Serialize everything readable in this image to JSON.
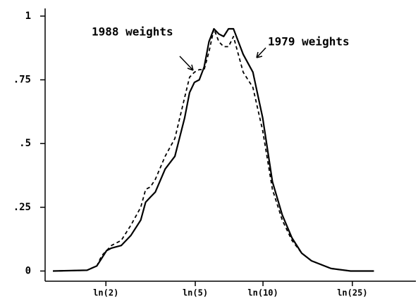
{
  "chart_data": {
    "type": "line",
    "x": [
      0.15,
      0.5,
      0.6,
      0.65,
      0.7,
      0.75,
      0.85,
      0.95,
      1.05,
      1.1,
      1.15,
      1.2,
      1.3,
      1.4,
      1.5,
      1.55,
      1.6,
      1.65,
      1.7,
      1.75,
      1.8,
      1.85,
      1.9,
      1.95,
      2.0,
      2.05,
      2.1,
      2.2,
      2.3,
      2.4,
      2.5,
      2.6,
      2.7,
      2.8,
      3.0,
      3.2,
      3.44
    ],
    "series": [
      {
        "name": "1979 weights",
        "color": "#000000",
        "dash": false,
        "values": [
          0,
          0.003,
          0.02,
          0.05,
          0.08,
          0.09,
          0.1,
          0.14,
          0.2,
          0.27,
          0.29,
          0.31,
          0.4,
          0.45,
          0.6,
          0.7,
          0.74,
          0.75,
          0.8,
          0.9,
          0.95,
          0.93,
          0.92,
          0.95,
          0.95,
          0.9,
          0.85,
          0.78,
          0.6,
          0.35,
          0.22,
          0.13,
          0.07,
          0.04,
          0.01,
          0,
          0
        ]
      },
      {
        "name": "1988 weights",
        "color": "#000000",
        "dash": true,
        "values": [
          0,
          0.003,
          0.02,
          0.06,
          0.08,
          0.1,
          0.12,
          0.18,
          0.25,
          0.32,
          0.33,
          0.36,
          0.45,
          0.52,
          0.68,
          0.76,
          0.78,
          0.79,
          0.79,
          0.86,
          0.95,
          0.9,
          0.88,
          0.88,
          0.92,
          0.85,
          0.78,
          0.72,
          0.55,
          0.32,
          0.2,
          0.12,
          0.07,
          0.04,
          0.01,
          0,
          0
        ]
      }
    ],
    "xlim": [
      0.07,
      3.87
    ],
    "xticks": [
      {
        "value": 0.693,
        "label": "ln(2)"
      },
      {
        "value": 1.609,
        "label": "ln(5)"
      },
      {
        "value": 2.303,
        "label": "ln(10)"
      },
      {
        "value": 3.219,
        "label": "ln(25)"
      }
    ],
    "ylim": [
      -0.04,
      1.03
    ],
    "yticks": [
      0,
      {
        "value": 0.25,
        "label": ".25"
      },
      {
        "value": 0.5,
        "label": ".5"
      },
      {
        "value": 0.75,
        "label": ".75"
      },
      1
    ]
  }
}
